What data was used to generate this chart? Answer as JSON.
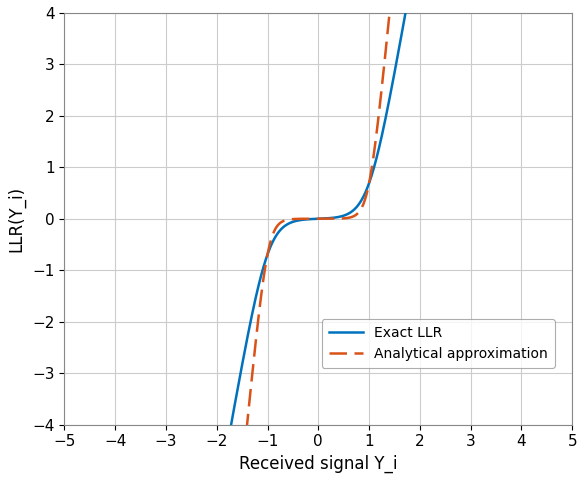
{
  "title": "",
  "xlabel": "Received signal Y_i",
  "ylabel": "LLR(Y_i)",
  "xlim": [
    -5,
    5
  ],
  "ylim": [
    -4,
    4
  ],
  "xticks": [
    -5,
    -4,
    -3,
    -2,
    -1,
    0,
    1,
    2,
    3,
    4,
    5
  ],
  "yticks": [
    -4,
    -3,
    -2,
    -1,
    0,
    1,
    2,
    3,
    4
  ],
  "exact_color": "#0072BD",
  "approx_color": "#D95319",
  "exact_linewidth": 1.8,
  "approx_linewidth": 1.8,
  "legend_exact": "Exact LLR",
  "legend_approx": "Analytical approximation",
  "background_color": "#ffffff",
  "grid_color": "#cccccc"
}
